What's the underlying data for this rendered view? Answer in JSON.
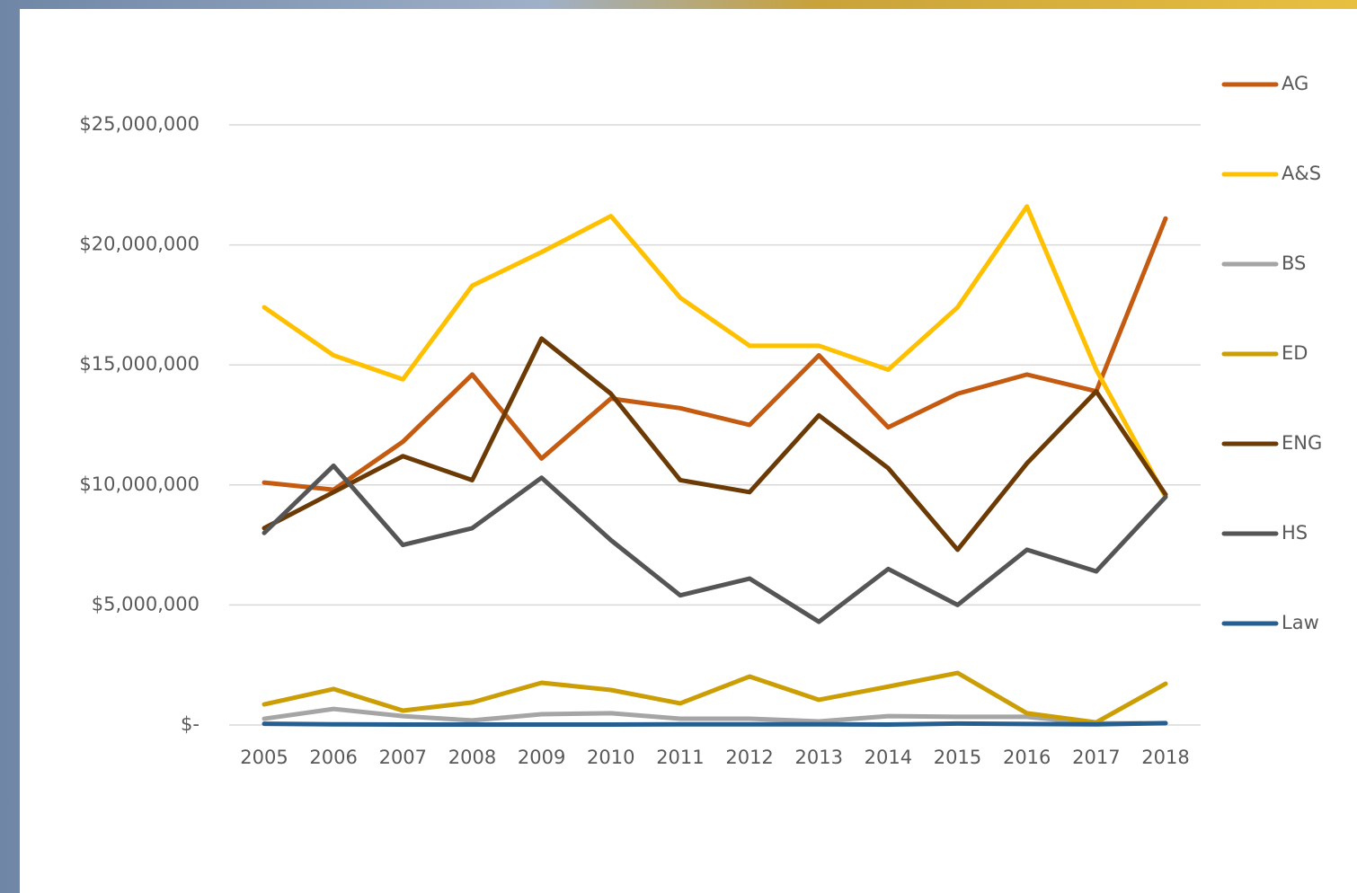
{
  "chart_data": {
    "type": "line",
    "x": [
      "2005",
      "2006",
      "2007",
      "2008",
      "2009",
      "2010",
      "2011",
      "2012",
      "2013",
      "2014",
      "2015",
      "2016",
      "2017",
      "2018"
    ],
    "series": [
      {
        "name": "AG",
        "color": "#c55a11",
        "values": [
          10100000,
          9800000,
          11800000,
          14600000,
          11100000,
          13600000,
          13200000,
          12500000,
          15400000,
          12400000,
          13800000,
          14600000,
          13900000,
          21100000
        ]
      },
      {
        "name": "A&S",
        "color": "#ffc000",
        "values": [
          17400000,
          15400000,
          14400000,
          18300000,
          19700000,
          21200000,
          17800000,
          15800000,
          15800000,
          14800000,
          17400000,
          21600000,
          14800000,
          9500000
        ]
      },
      {
        "name": "BS",
        "color": "#a5a5a5",
        "values": [
          260000,
          670000,
          370000,
          190000,
          450000,
          490000,
          260000,
          260000,
          150000,
          370000,
          340000,
          340000,
          70000,
          70000
        ]
      },
      {
        "name": "ED",
        "color": "#cc9e06",
        "values": [
          860000,
          1500000,
          600000,
          940000,
          1760000,
          1460000,
          900000,
          2020000,
          1050000,
          1600000,
          2170000,
          490000,
          110000,
          1720000
        ]
      },
      {
        "name": "ENG",
        "color": "#6b3a05",
        "values": [
          8200000,
          9700000,
          11200000,
          10200000,
          16100000,
          13800000,
          10200000,
          9700000,
          12900000,
          10700000,
          7300000,
          10900000,
          13900000,
          9600000
        ]
      },
      {
        "name": "HS",
        "color": "#555555",
        "values": [
          8000000,
          10800000,
          7500000,
          8200000,
          10300000,
          7700000,
          5400000,
          6100000,
          4300000,
          6500000,
          5000000,
          7300000,
          6400000,
          9500000
        ]
      },
      {
        "name": "Law",
        "color": "#255e91",
        "values": [
          50000,
          30000,
          20000,
          20000,
          20000,
          20000,
          30000,
          30000,
          30000,
          20000,
          60000,
          40000,
          30000,
          80000
        ]
      }
    ],
    "ylim": [
      0,
      25000000
    ],
    "yticks": [
      {
        "value": 0,
        "label": "$-"
      },
      {
        "value": 5000000,
        "label": "$5,000,000"
      },
      {
        "value": 10000000,
        "label": "$10,000,000"
      },
      {
        "value": 15000000,
        "label": "$15,000,000"
      },
      {
        "value": 20000000,
        "label": "$20,000,000"
      },
      {
        "value": 25000000,
        "label": "$25,000,000"
      }
    ],
    "grid": true,
    "legend": "right"
  }
}
